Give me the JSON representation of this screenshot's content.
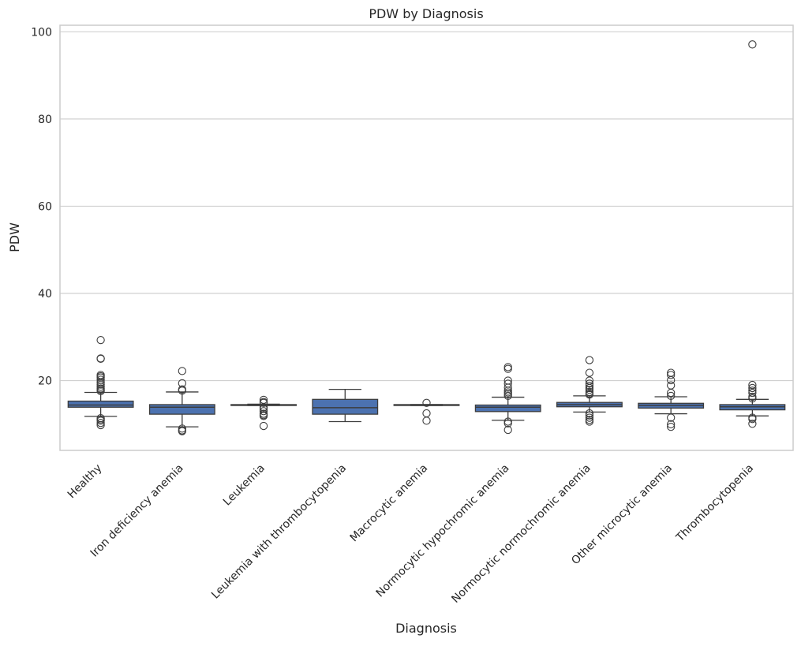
{
  "chart_data": {
    "type": "box",
    "title": "PDW by Diagnosis",
    "xlabel": "Diagnosis",
    "ylabel": "PDW",
    "ylim": [
      4,
      101.5
    ],
    "yticks": [
      20,
      40,
      60,
      80,
      100
    ],
    "grid": "horizontal",
    "colors": {
      "box": "#4c72b0",
      "line": "#3d3d3d"
    },
    "categories": [
      "Healthy",
      "Iron deficiency anemia",
      "Leukemia",
      "Leukemia with thrombocytopenia",
      "Macrocytic anemia",
      "Normocytic hypochromic anemia",
      "Normocytic normochromic anemia",
      "Other microcytic anemia",
      "Thrombocytopenia"
    ],
    "boxes": [
      {
        "category": "Healthy",
        "whisker_low": 11.8,
        "q1": 13.9,
        "median": 14.4,
        "q3": 15.3,
        "whisker_high": 17.3,
        "fliers": [
          29.3,
          25.1,
          25.0,
          21.3,
          21.0,
          20.7,
          20.2,
          19.6,
          19.1,
          18.6,
          18.2,
          17.9,
          17.6,
          11.4,
          11.1,
          10.8,
          10.3,
          9.8
        ]
      },
      {
        "category": "Iron deficiency anemia",
        "whisker_low": 9.4,
        "q1": 12.3,
        "median": 13.9,
        "q3": 14.5,
        "whisker_high": 17.4,
        "fliers": [
          22.2,
          19.4,
          18.0,
          17.7,
          9.0,
          8.6,
          8.4
        ]
      },
      {
        "category": "Leukemia",
        "whisker_low": 14.3,
        "q1": 14.3,
        "median": 14.4,
        "q3": 14.5,
        "whisker_high": 14.6,
        "fliers": [
          15.6,
          15.1,
          14.9,
          13.9,
          13.5,
          13.0,
          12.4,
          12.1,
          11.9,
          9.6
        ]
      },
      {
        "category": "Leukemia with thrombocytopenia",
        "whisker_low": 10.6,
        "q1": 12.3,
        "median": 13.8,
        "q3": 15.7,
        "whisker_high": 18.0,
        "fliers": []
      },
      {
        "category": "Macrocytic anemia",
        "whisker_low": 14.3,
        "q1": 14.3,
        "median": 14.4,
        "q3": 14.5,
        "whisker_high": 14.5,
        "fliers": [
          14.9,
          12.5,
          10.8
        ]
      },
      {
        "category": "Normocytic hypochromic anemia",
        "whisker_low": 10.9,
        "q1": 12.9,
        "median": 13.9,
        "q3": 14.4,
        "whisker_high": 16.2,
        "fliers": [
          23.1,
          22.7,
          20.0,
          19.3,
          18.4,
          17.7,
          17.3,
          16.9,
          16.5,
          10.6,
          10.2,
          8.7
        ]
      },
      {
        "category": "Normocytic normochromic anemia",
        "whisker_low": 12.8,
        "q1": 14.0,
        "median": 14.5,
        "q3": 15.0,
        "whisker_high": 16.5,
        "fliers": [
          24.7,
          21.8,
          20.0,
          19.3,
          18.8,
          18.3,
          17.9,
          17.4,
          17.0,
          16.8,
          12.5,
          12.0,
          11.5,
          11.0,
          10.6
        ]
      },
      {
        "category": "Other microcytic anemia",
        "whisker_low": 12.4,
        "q1": 13.7,
        "median": 14.3,
        "q3": 14.8,
        "whisker_high": 16.3,
        "fliers": [
          21.8,
          21.3,
          20.1,
          18.9,
          17.2,
          16.5,
          11.5,
          10.0,
          9.4
        ]
      },
      {
        "category": "Thrombocytopenia",
        "whisker_low": 11.9,
        "q1": 13.3,
        "median": 14.0,
        "q3": 14.5,
        "whisker_high": 15.7,
        "fliers": [
          97.1,
          19.0,
          18.3,
          17.7,
          17.2,
          16.3,
          15.9,
          11.5,
          11.2,
          10.1
        ]
      }
    ]
  }
}
